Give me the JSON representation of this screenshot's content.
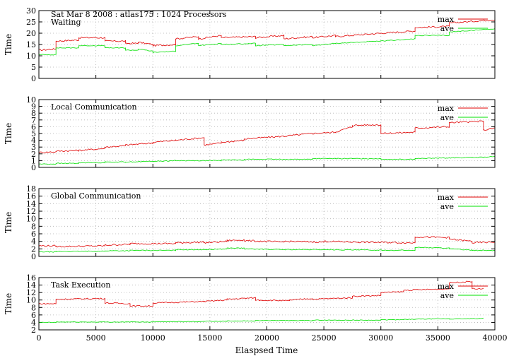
{
  "colors": {
    "max": "#e00000",
    "ave": "#00e000"
  },
  "chart_data": [
    {
      "type": "line",
      "header": "Sat Mar 8 2008 : atlas175 : 1024 Processors",
      "title": "Waiting",
      "ylabel": "Time",
      "xlim": [
        0,
        40000
      ],
      "ylim": [
        0,
        30
      ],
      "yticks": [
        0,
        5,
        10,
        15,
        20,
        25,
        30
      ],
      "legend": "top-right",
      "grid": true,
      "x": [
        0,
        1500,
        1500,
        3500,
        3500,
        5800,
        5800,
        7600,
        7600,
        8700,
        8700,
        10000,
        10000,
        12000,
        12000,
        14000,
        14000,
        16000,
        16000,
        19000,
        19000,
        21500,
        21500,
        24000,
        24000,
        26000,
        26000,
        30000,
        30000,
        33000,
        33000,
        36000,
        36000,
        40000
      ],
      "series": [
        {
          "name": "max",
          "values": [
            12.5,
            13,
            16.5,
            17,
            18,
            18,
            16.5,
            16.5,
            15.5,
            15.5,
            16,
            15,
            14.5,
            15,
            17.5,
            18.5,
            17.5,
            19,
            18,
            18.5,
            18,
            19,
            17.5,
            18.5,
            18,
            19,
            18.5,
            20,
            20,
            21,
            22.5,
            23,
            24.5,
            26
          ]
        },
        {
          "name": "ave",
          "values": [
            10.5,
            10.5,
            13.5,
            13.5,
            14.5,
            14.5,
            13.5,
            13.5,
            12.5,
            12.5,
            13,
            12,
            11.5,
            12,
            14.5,
            15.5,
            14.5,
            15.5,
            15,
            15.5,
            14.5,
            15,
            14.5,
            15,
            14.5,
            15.5,
            15.5,
            16.5,
            16.5,
            17.5,
            19,
            19,
            20.5,
            22
          ]
        }
      ]
    },
    {
      "type": "line",
      "title": "Local Communication",
      "ylabel": "Time",
      "xlim": [
        0,
        40000
      ],
      "ylim": [
        0,
        10
      ],
      "yticks": [
        0,
        1,
        2,
        3,
        4,
        5,
        6,
        7,
        8,
        9,
        10
      ],
      "legend": "top-right",
      "grid": true,
      "x": [
        0,
        1500,
        1500,
        3500,
        3500,
        5800,
        5800,
        7600,
        7600,
        10000,
        10000,
        12000,
        12000,
        14500,
        14500,
        16000,
        16000,
        18000,
        18000,
        21500,
        21500,
        24000,
        24000,
        26000,
        26000,
        27500,
        27500,
        30000,
        30000,
        33000,
        33000,
        36000,
        36000,
        39000,
        39000,
        40000
      ],
      "series": [
        {
          "name": "max",
          "values": [
            2.2,
            2.3,
            2.4,
            2.5,
            2.5,
            2.8,
            3.0,
            3.2,
            3.3,
            3.6,
            3.7,
            4.0,
            4.0,
            4.4,
            3.3,
            3.6,
            3.7,
            4.0,
            4.2,
            4.6,
            4.6,
            5.0,
            5.0,
            5.2,
            5.2,
            6.0,
            6.2,
            6.3,
            5.0,
            5.2,
            5.8,
            6.0,
            6.6,
            6.8,
            5.5,
            5.8
          ]
        },
        {
          "name": "ave",
          "values": [
            0.5,
            0.5,
            0.6,
            0.6,
            0.7,
            0.7,
            0.8,
            0.8,
            0.8,
            0.9,
            0.9,
            1.0,
            1.0,
            1.0,
            1.0,
            1.0,
            1.1,
            1.1,
            1.2,
            1.2,
            1.2,
            1.2,
            1.3,
            1.3,
            1.3,
            1.3,
            1.3,
            1.3,
            1.2,
            1.2,
            1.3,
            1.4,
            1.4,
            1.5,
            1.5,
            1.6
          ]
        }
      ]
    },
    {
      "type": "line",
      "title": "Global Communication",
      "ylabel": "Time",
      "xlim": [
        0,
        40000
      ],
      "ylim": [
        0,
        18
      ],
      "yticks": [
        0,
        2,
        4,
        6,
        8,
        10,
        12,
        14,
        16,
        18
      ],
      "legend": "top-right",
      "grid": true,
      "x": [
        0,
        1500,
        1500,
        5800,
        5800,
        8000,
        8000,
        12000,
        12000,
        14500,
        14500,
        16500,
        16500,
        18000,
        18000,
        21500,
        21500,
        25000,
        25000,
        28000,
        28000,
        33000,
        33000,
        36000,
        36000,
        38000,
        38000,
        40000
      ],
      "series": [
        {
          "name": "max",
          "values": [
            2.8,
            2.8,
            2.6,
            2.8,
            3.0,
            3.2,
            3.4,
            3.4,
            3.6,
            3.8,
            3.6,
            4.0,
            4.2,
            4.4,
            4.2,
            3.8,
            4.0,
            3.8,
            4.0,
            3.8,
            3.8,
            3.6,
            5.2,
            5.0,
            4.6,
            4.0,
            3.6,
            3.8
          ]
        },
        {
          "name": "ave",
          "values": [
            1.2,
            1.2,
            1.3,
            1.4,
            1.5,
            1.5,
            1.6,
            1.6,
            1.8,
            1.8,
            1.8,
            2.0,
            2.2,
            2.2,
            2.0,
            1.8,
            1.8,
            1.8,
            1.8,
            1.7,
            1.7,
            1.6,
            2.4,
            2.2,
            2.0,
            1.7,
            1.6,
            1.6
          ]
        }
      ]
    },
    {
      "type": "line",
      "title": "Task Execution",
      "ylabel": "Time",
      "xlabel": "Elaspsed Time",
      "xlim": [
        0,
        40000
      ],
      "xticks": [
        0,
        5000,
        10000,
        15000,
        20000,
        25000,
        30000,
        35000,
        40000
      ],
      "ylim": [
        2,
        16
      ],
      "yticks": [
        2,
        4,
        6,
        8,
        10,
        12,
        14,
        16
      ],
      "legend": "top-right",
      "grid": true,
      "x": [
        0,
        1500,
        1500,
        5800,
        5800,
        8000,
        8000,
        10000,
        10000,
        14500,
        14500,
        16500,
        16500,
        19000,
        19000,
        22000,
        22000,
        24000,
        24000,
        27500,
        27500,
        30000,
        30000,
        32000,
        32000,
        36000,
        36000,
        38000,
        38000,
        39000
      ],
      "series": [
        {
          "name": "max",
          "values": [
            9.0,
            9.0,
            10.2,
            10.4,
            9.2,
            9.0,
            8.4,
            8.4,
            9.2,
            9.6,
            9.6,
            10.0,
            10.2,
            10.6,
            10.0,
            9.8,
            10.0,
            10.4,
            10.2,
            10.6,
            11.0,
            11.2,
            12.0,
            12.2,
            12.6,
            13.0,
            14.6,
            15.0,
            13.0,
            13.0
          ]
        },
        {
          "name": "ave",
          "values": [
            4.0,
            4.0,
            4.1,
            4.1,
            4.1,
            4.1,
            4.1,
            4.1,
            4.2,
            4.2,
            4.3,
            4.3,
            4.4,
            4.4,
            4.5,
            4.5,
            4.5,
            4.5,
            4.6,
            4.6,
            4.6,
            4.6,
            4.7,
            4.7,
            4.8,
            5.0,
            4.9,
            5.0,
            5.0,
            5.1
          ]
        }
      ]
    }
  ]
}
